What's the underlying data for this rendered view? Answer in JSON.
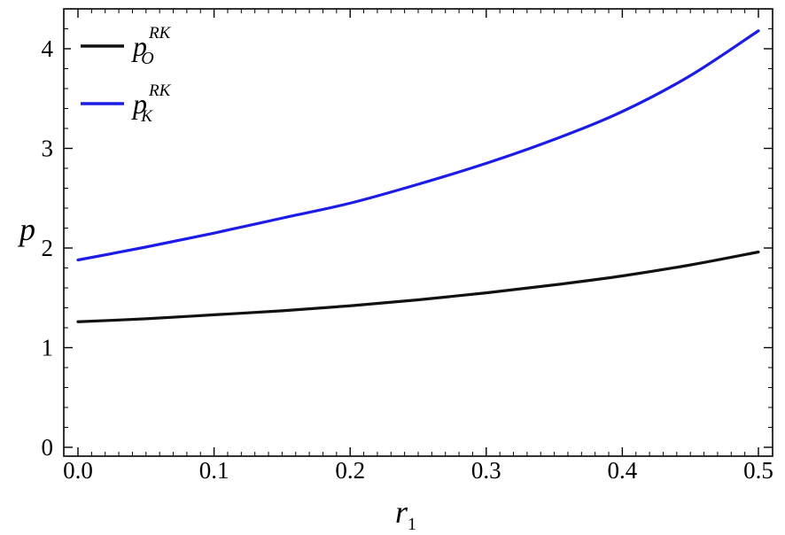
{
  "chart_data": {
    "type": "line",
    "xlabel": "r",
    "xlabel_subscript": "1",
    "ylabel": "p",
    "xlim": [
      0.0,
      0.5
    ],
    "ylim": [
      0,
      4.3
    ],
    "x_ticks": [
      "0.0",
      "0.1",
      "0.2",
      "0.3",
      "0.4",
      "0.5"
    ],
    "y_ticks": [
      "0",
      "1",
      "2",
      "3",
      "4"
    ],
    "grid": false,
    "legend_position": "top-left",
    "x": [
      0.0,
      0.05,
      0.1,
      0.15,
      0.2,
      0.25,
      0.3,
      0.35,
      0.4,
      0.45,
      0.5
    ],
    "series": [
      {
        "name": "p",
        "name_superscript": "RK",
        "name_subscript": "O",
        "color": "#111111",
        "values": [
          1.26,
          1.29,
          1.33,
          1.37,
          1.42,
          1.48,
          1.55,
          1.63,
          1.72,
          1.83,
          1.96
        ]
      },
      {
        "name": "p",
        "name_superscript": "RK",
        "name_subscript": "K",
        "color": "#1c1ce6",
        "values": [
          1.88,
          2.01,
          2.15,
          2.3,
          2.45,
          2.64,
          2.85,
          3.09,
          3.37,
          3.73,
          4.18
        ]
      }
    ]
  }
}
